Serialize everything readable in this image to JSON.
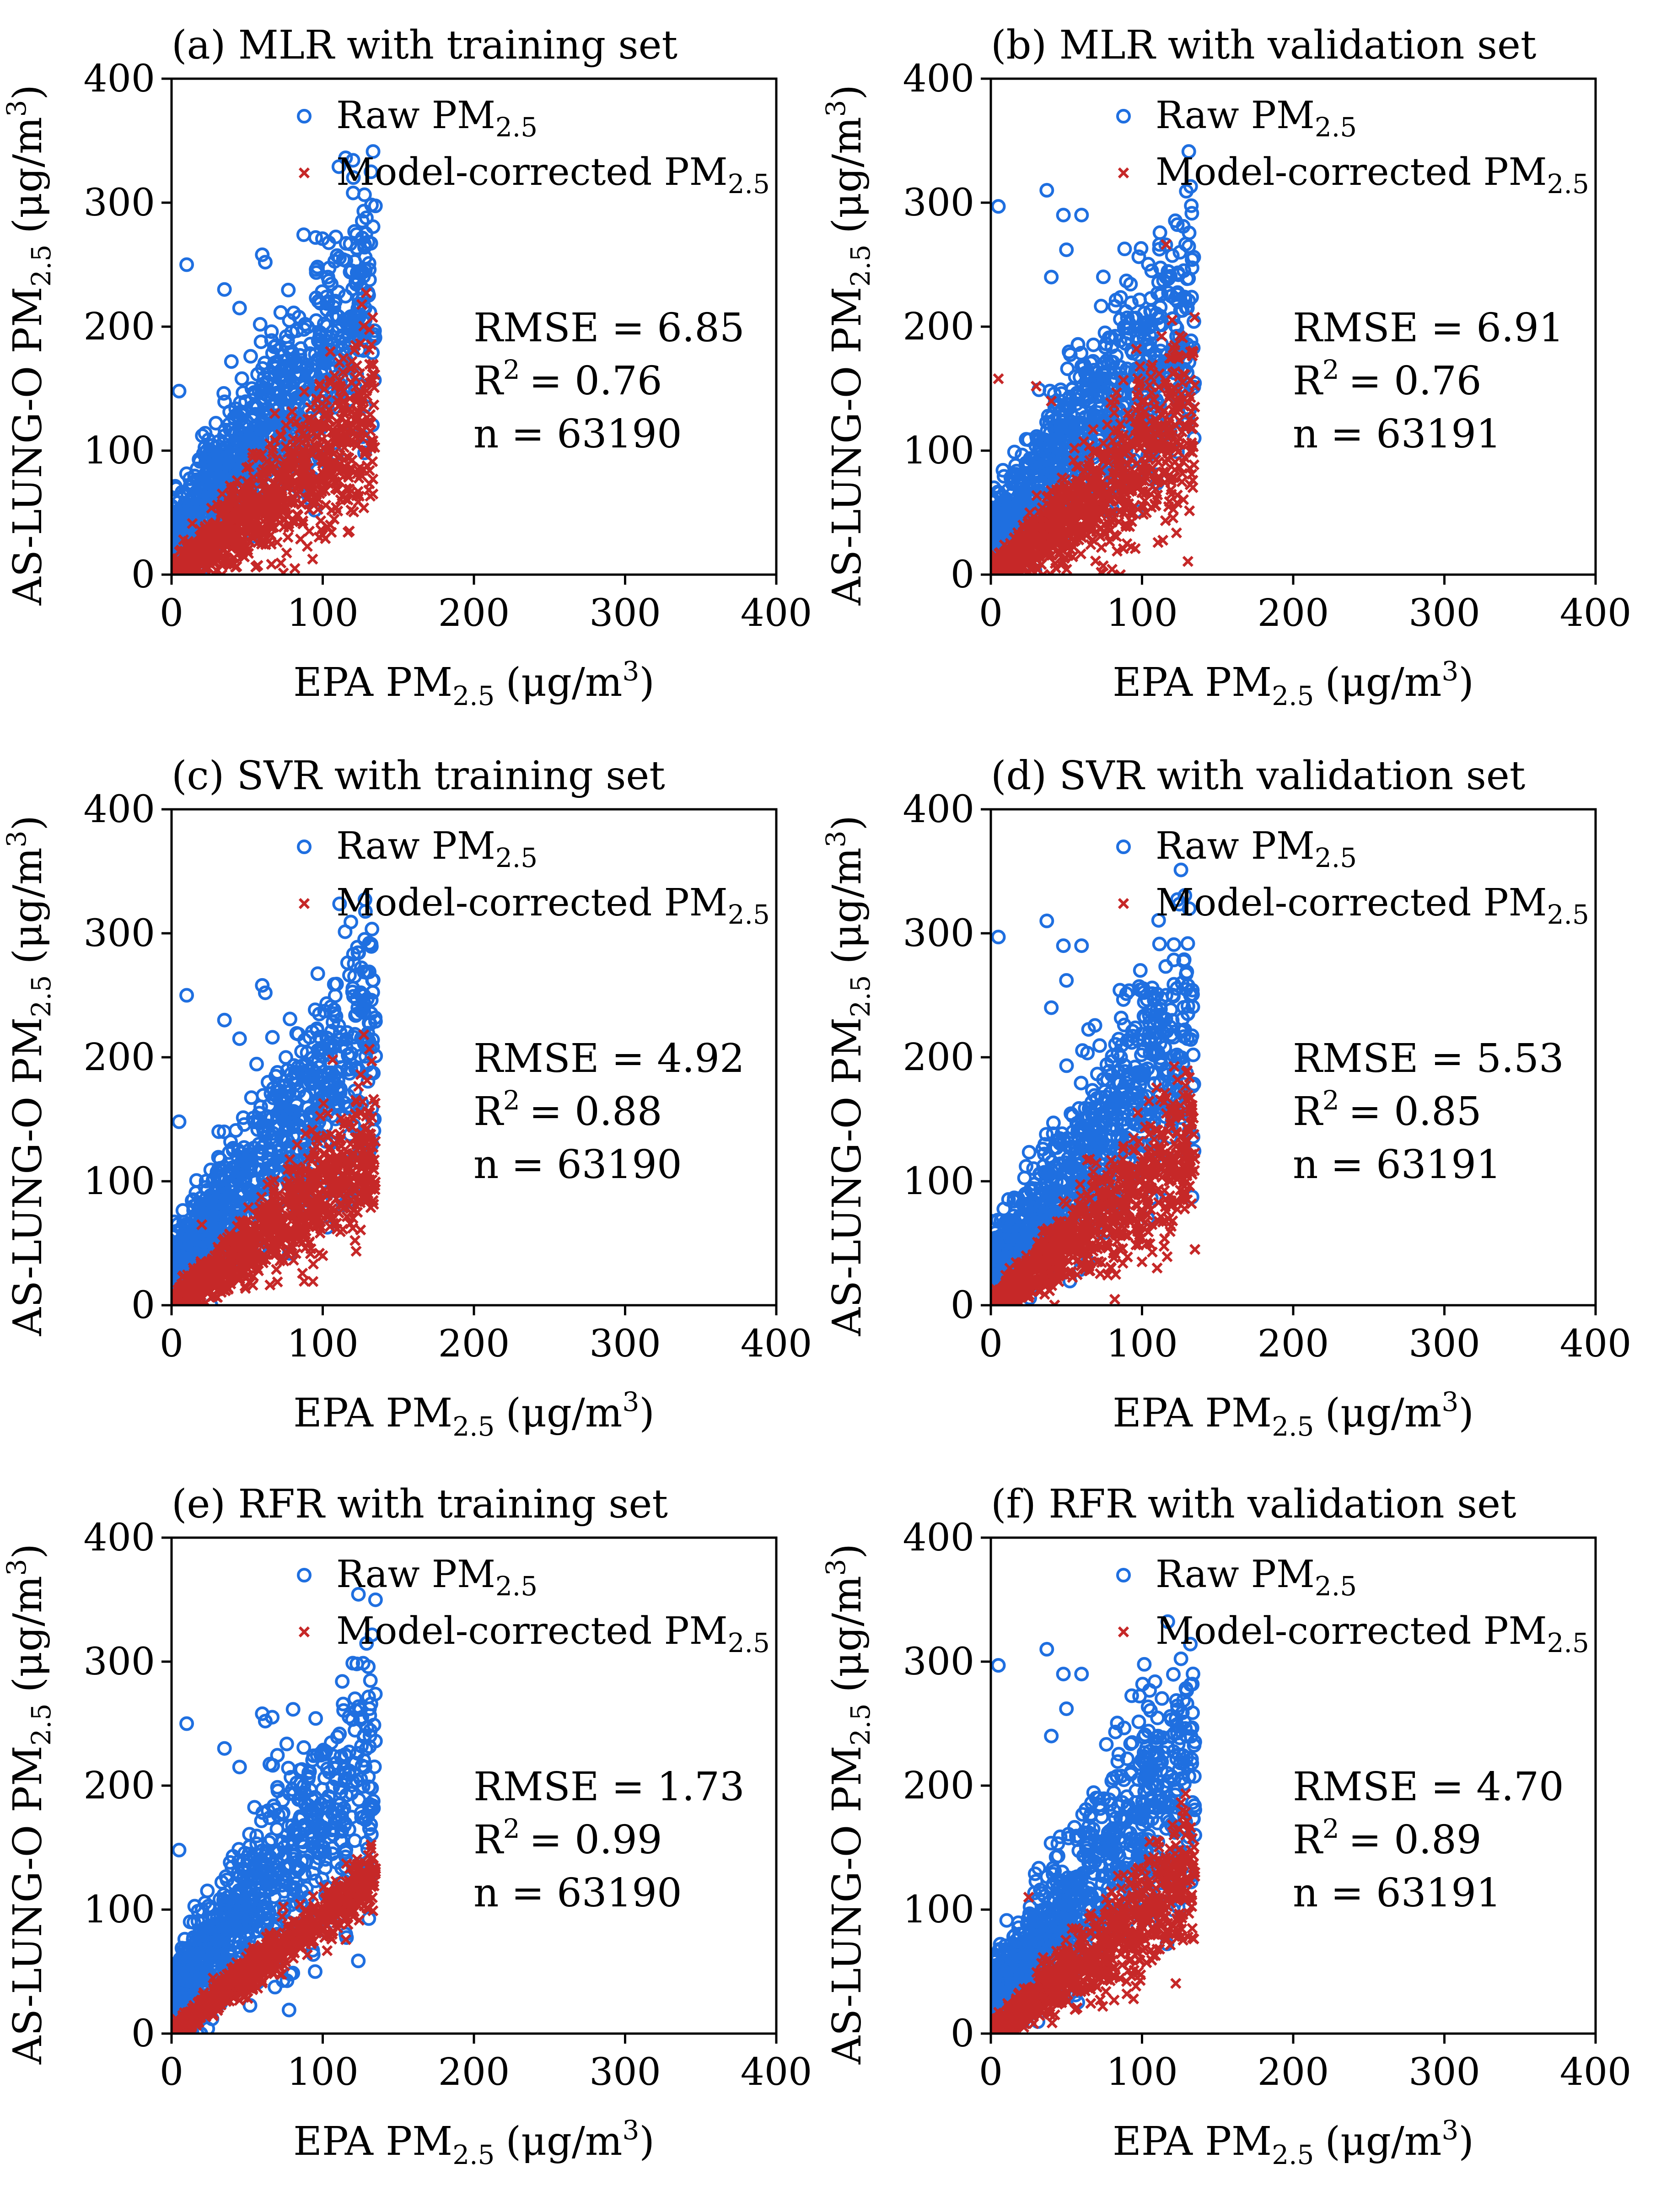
{
  "figure": {
    "legend_raw_label": "Raw PM",
    "legend_corrected_label": "Model-corrected PM",
    "pm_subscript": "2.5",
    "xlabel_prefix": "EPA PM",
    "ylabel_prefix": "AS-LUNG-O PM",
    "unit_open": "(μg/m",
    "unit_sup": "3",
    "unit_close": ")",
    "r2_label": "R",
    "r2_sup": "2",
    "colors": {
      "raw": "#1f6fe0",
      "corrected": "#c62828",
      "axis": "#000000"
    }
  },
  "chart_data": [
    {
      "type": "scatter",
      "panel": "a",
      "title": "(a) MLR with training set",
      "xlim": [
        0,
        400
      ],
      "ylim": [
        0,
        400
      ],
      "xticks": [
        0,
        100,
        200,
        300,
        400
      ],
      "yticks": [
        0,
        100,
        200,
        300,
        400
      ],
      "stats": {
        "rmse": "RMSE = 6.85",
        "r2": "= 0.76",
        "n": "n = 63190"
      },
      "legend": "top-center",
      "series": [
        {
          "name": "Raw PM2.5",
          "marker": "circle",
          "max_x": 135,
          "outliers": [
            [
              10,
              250
            ],
            [
              60,
              258
            ],
            [
              62,
              252
            ],
            [
              35,
              230
            ],
            [
              45,
              215
            ],
            [
              5,
              148
            ],
            [
              128,
              215
            ]
          ]
        },
        {
          "name": "Model-corrected PM2.5",
          "marker": "x",
          "max_x": 135,
          "outliers": [
            [
              110,
              115
            ],
            [
              132,
              108
            ],
            [
              105,
              40
            ],
            [
              100,
              32
            ]
          ]
        }
      ]
    },
    {
      "type": "scatter",
      "panel": "b",
      "title": "(b) MLR with validation set",
      "xlim": [
        0,
        400
      ],
      "ylim": [
        0,
        400
      ],
      "xticks": [
        0,
        100,
        200,
        300,
        400
      ],
      "yticks": [
        0,
        100,
        200,
        300,
        400
      ],
      "stats": {
        "rmse": "RMSE = 6.91",
        "r2": "= 0.76",
        "n": "n = 63191"
      },
      "legend": "top-center",
      "series": [
        {
          "name": "Raw PM2.5",
          "marker": "circle",
          "max_x": 135,
          "outliers": [
            [
              5,
              297
            ],
            [
              37,
              310
            ],
            [
              48,
              290
            ],
            [
              60,
              290
            ],
            [
              40,
              240
            ],
            [
              50,
              262
            ],
            [
              130,
              215
            ]
          ]
        },
        {
          "name": "Model-corrected PM2.5",
          "marker": "x",
          "max_x": 135,
          "outliers": [
            [
              5,
              158
            ],
            [
              30,
              152
            ],
            [
              40,
              140
            ],
            [
              125,
              110
            ],
            [
              90,
              25
            ]
          ]
        }
      ]
    },
    {
      "type": "scatter",
      "panel": "c",
      "title": "(c) SVR with training set",
      "xlim": [
        0,
        400
      ],
      "ylim": [
        0,
        400
      ],
      "xticks": [
        0,
        100,
        200,
        300,
        400
      ],
      "yticks": [
        0,
        100,
        200,
        300,
        400
      ],
      "stats": {
        "rmse": "RMSE = 4.92",
        "r2": "= 0.88",
        "n": "n = 63190"
      },
      "legend": "top-center",
      "series": [
        {
          "name": "Raw PM2.5",
          "marker": "circle",
          "max_x": 135,
          "outliers": [
            [
              10,
              250
            ],
            [
              60,
              258
            ],
            [
              62,
              252
            ],
            [
              35,
              230
            ],
            [
              45,
              215
            ],
            [
              5,
              148
            ],
            [
              128,
              215
            ]
          ]
        },
        {
          "name": "Model-corrected PM2.5",
          "marker": "x",
          "max_x": 135,
          "outliers": [
            [
              115,
              115
            ],
            [
              130,
              90
            ],
            [
              120,
              70
            ],
            [
              100,
              40
            ],
            [
              20,
              65
            ]
          ]
        }
      ]
    },
    {
      "type": "scatter",
      "panel": "d",
      "title": "(d) SVR with validation set",
      "xlim": [
        0,
        400
      ],
      "ylim": [
        0,
        400
      ],
      "xticks": [
        0,
        100,
        200,
        300,
        400
      ],
      "yticks": [
        0,
        100,
        200,
        300,
        400
      ],
      "stats": {
        "rmse": "RMSE = 5.53",
        "r2": "= 0.85",
        "n": "n = 63191"
      },
      "legend": "top-center",
      "series": [
        {
          "name": "Raw PM2.5",
          "marker": "circle",
          "max_x": 135,
          "outliers": [
            [
              5,
              297
            ],
            [
              37,
              310
            ],
            [
              48,
              290
            ],
            [
              60,
              290
            ],
            [
              40,
              240
            ],
            [
              50,
              262
            ],
            [
              130,
              215
            ]
          ]
        },
        {
          "name": "Model-corrected PM2.5",
          "marker": "x",
          "max_x": 135,
          "outliers": [
            [
              115,
              115
            ],
            [
              135,
              45
            ],
            [
              130,
              85
            ],
            [
              100,
              35
            ],
            [
              110,
              30
            ]
          ]
        }
      ]
    },
    {
      "type": "scatter",
      "panel": "e",
      "title": "(e) RFR with training set",
      "xlim": [
        0,
        400
      ],
      "ylim": [
        0,
        400
      ],
      "xticks": [
        0,
        100,
        200,
        300,
        400
      ],
      "yticks": [
        0,
        100,
        200,
        300,
        400
      ],
      "stats": {
        "rmse": "RMSE = 1.73",
        "r2": "= 0.99",
        "n": "n = 63190"
      },
      "legend": "top-center",
      "series": [
        {
          "name": "Raw PM2.5",
          "marker": "circle",
          "max_x": 135,
          "outliers": [
            [
              10,
              250
            ],
            [
              60,
              258
            ],
            [
              62,
              252
            ],
            [
              35,
              230
            ],
            [
              45,
              215
            ],
            [
              5,
              148
            ],
            [
              128,
              215
            ],
            [
              95,
              50
            ]
          ]
        },
        {
          "name": "Model-corrected PM2.5",
          "marker": "x",
          "max_x": 135,
          "outliers": [
            [
              135,
              133
            ],
            [
              130,
              128
            ],
            [
              120,
              118
            ]
          ]
        }
      ]
    },
    {
      "type": "scatter",
      "panel": "f",
      "title": "(f) RFR with validation set",
      "xlim": [
        0,
        400
      ],
      "ylim": [
        0,
        400
      ],
      "xticks": [
        0,
        100,
        200,
        300,
        400
      ],
      "yticks": [
        0,
        100,
        200,
        300,
        400
      ],
      "stats": {
        "rmse": "RMSE = 4.70",
        "r2": "= 0.89",
        "n": "n = 63191"
      },
      "legend": "top-center",
      "series": [
        {
          "name": "Raw PM2.5",
          "marker": "circle",
          "max_x": 135,
          "outliers": [
            [
              5,
              297
            ],
            [
              37,
              310
            ],
            [
              48,
              290
            ],
            [
              60,
              290
            ],
            [
              40,
              240
            ],
            [
              50,
              262
            ],
            [
              130,
              215
            ]
          ]
        },
        {
          "name": "Model-corrected PM2.5",
          "marker": "x",
          "max_x": 135,
          "outliers": [
            [
              135,
              130
            ],
            [
              130,
              122
            ],
            [
              90,
              32
            ],
            [
              25,
              110
            ]
          ]
        }
      ]
    }
  ]
}
